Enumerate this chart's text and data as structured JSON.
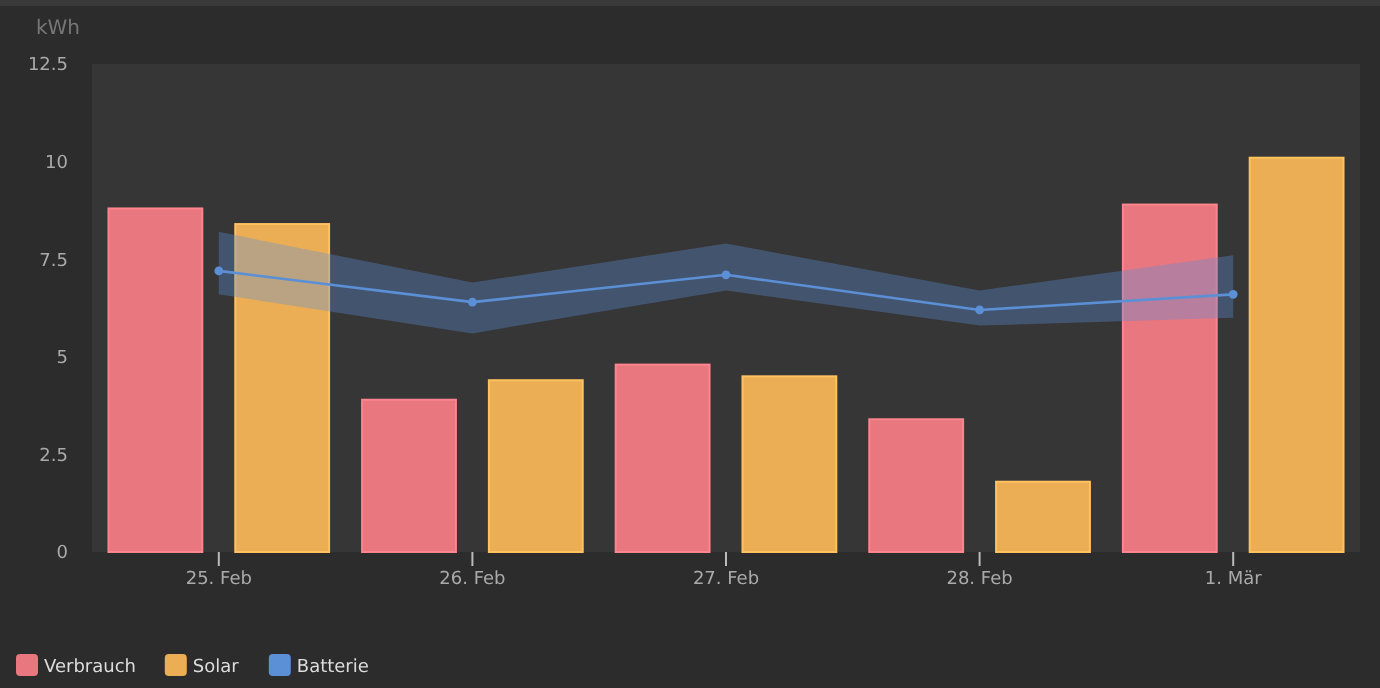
{
  "chart_data": {
    "type": "bar",
    "ylabel": "kWh",
    "categories": [
      "25. Feb",
      "26. Feb",
      "27. Feb",
      "28. Feb",
      "1. Mär"
    ],
    "series": [
      {
        "name": "Verbrauch",
        "color": "#e8777f",
        "values": [
          8.8,
          3.9,
          4.8,
          3.4,
          8.9
        ]
      },
      {
        "name": "Solar",
        "color": "#ecae55",
        "values": [
          8.4,
          4.4,
          4.5,
          1.8,
          10.1
        ]
      },
      {
        "name": "Batterie",
        "type": "line",
        "color": "#5b8fd6",
        "marker": "circle",
        "values": [
          7.2,
          6.4,
          7.1,
          6.2,
          6.6
        ],
        "lower": [
          6.6,
          5.6,
          6.7,
          5.8,
          6.0
        ],
        "upper": [
          8.2,
          6.9,
          7.9,
          6.7,
          7.6
        ]
      }
    ],
    "ylim": [
      0,
      12.5
    ],
    "yticks": [
      0,
      2.5,
      5,
      7.5,
      10,
      12.5
    ],
    "legend": "bottom left"
  }
}
